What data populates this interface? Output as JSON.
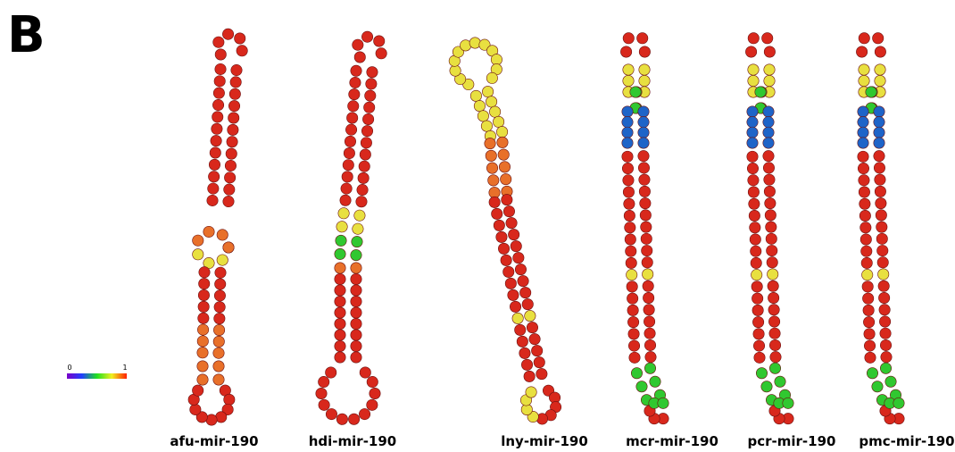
{
  "panel_label": "B",
  "color_scale": {
    "min": 0,
    "max": 1
  },
  "structures": [
    {
      "name": "afu-mir-190"
    },
    {
      "name": "hdi-mir-190"
    },
    {
      "name": "lny-mir-190"
    },
    {
      "name": "mcr-mir-190"
    },
    {
      "name": "pcr-mir-190"
    },
    {
      "name": "pmc-mir-190"
    }
  ]
}
